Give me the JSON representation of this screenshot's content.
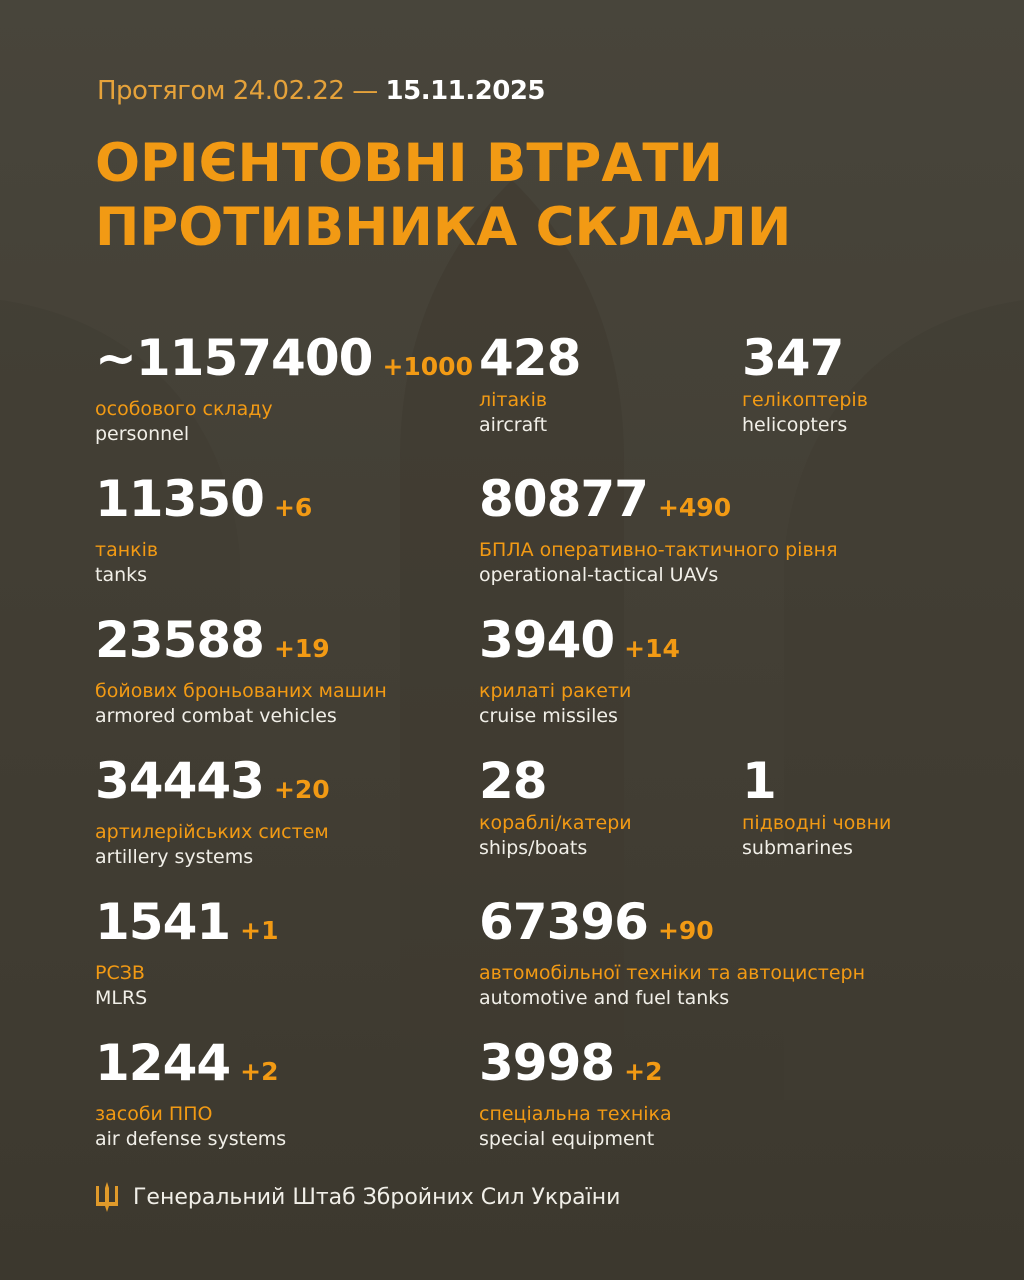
{
  "header": {
    "period_prefix": "Протягом 24.02.22 —",
    "period_end": "15.11.2025",
    "title_line1": "ОРІЄНТОВНІ ВТРАТИ",
    "title_line2": "ПРОТИВНИКА СКЛАЛИ"
  },
  "colors": {
    "accent": "#f29a14",
    "background": "#433f35",
    "text": "#ffffff"
  },
  "items": [
    {
      "value": "~1157400",
      "delta": "+1000",
      "ua": "особового складу",
      "en": "personnel"
    },
    {
      "value": "428",
      "delta": "",
      "ua": "літаків",
      "en": "aircraft"
    },
    {
      "value": "347",
      "delta": "",
      "ua": "гелікоптерів",
      "en": "helicopters"
    },
    {
      "value": "11350",
      "delta": "+6",
      "ua": "танків",
      "en": "tanks"
    },
    {
      "value": "80877",
      "delta": "+490",
      "ua": "БПЛА оперативно-тактичного рівня",
      "en": "operational-tactical UAVs"
    },
    {
      "value": "23588",
      "delta": "+19",
      "ua": "бойових броньованих машин",
      "en": "armored combat vehicles"
    },
    {
      "value": "3940",
      "delta": "+14",
      "ua": "крилаті ракети",
      "en": "cruise missiles"
    },
    {
      "value": "34443",
      "delta": "+20",
      "ua": "артилерійських систем",
      "en": "artillery systems"
    },
    {
      "value": "28",
      "delta": "",
      "ua": "кораблі/катери",
      "en": "ships/boats"
    },
    {
      "value": "1",
      "delta": "",
      "ua": "підводні човни",
      "en": "submarines"
    },
    {
      "value": "1541",
      "delta": "+1",
      "ua": "РСЗВ",
      "en": "MLRS"
    },
    {
      "value": "67396",
      "delta": "+90",
      "ua": "автомобільної техніки та автоцистерн",
      "en": "automotive and fuel tanks"
    },
    {
      "value": "1244",
      "delta": "+2",
      "ua": "засоби ППО",
      "en": "air defense systems"
    },
    {
      "value": "3998",
      "delta": "+2",
      "ua": "спеціальна техніка",
      "en": "special equipment"
    }
  ],
  "footer": {
    "icon": "trident-icon",
    "text": "Генеральний Штаб Збройних Сил України"
  }
}
